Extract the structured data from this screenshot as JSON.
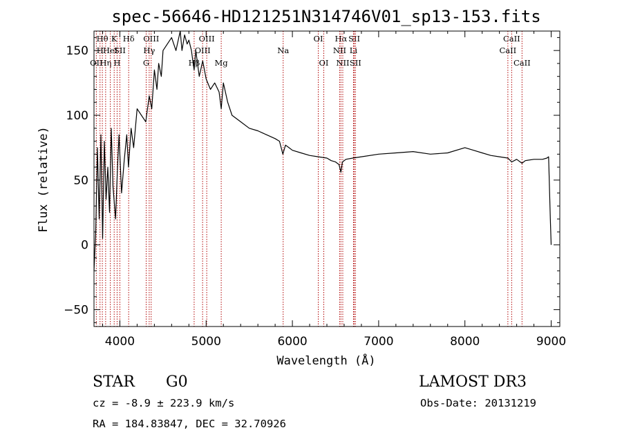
{
  "chart_data": {
    "type": "line",
    "title": "spec-56646-HD121251N314746V01_sp13-153.fits",
    "xlabel": "Wavelength (Å)",
    "ylabel": "Flux (relative)",
    "xlim": [
      3700,
      9100
    ],
    "ylim": [
      -63,
      165
    ],
    "x_ticks": [
      4000,
      5000,
      6000,
      7000,
      8000,
      9000
    ],
    "y_ticks": [
      -50,
      0,
      50,
      100,
      150
    ],
    "grid": false,
    "colors": {
      "spectrum": "#000000",
      "lines": "#b00000"
    },
    "series": [
      {
        "x": [
          3700,
          3720,
          3740,
          3760,
          3780,
          3800,
          3820,
          3840,
          3860,
          3880,
          3900,
          3920,
          3950,
          3970,
          3990,
          4020,
          4050,
          4080,
          4100,
          4130,
          4160,
          4200,
          4250,
          4300,
          4340,
          4370,
          4400,
          4430,
          4450,
          4480,
          4500,
          4550,
          4600,
          4650,
          4700,
          4720,
          4750,
          4780,
          4800,
          4830,
          4850,
          4861,
          4880,
          4920,
          4960,
          5000,
          5050,
          5100,
          5150,
          5175,
          5200,
          5250,
          5300,
          5400,
          5500,
          5600,
          5700,
          5800,
          5850,
          5890,
          5920,
          5960,
          6000,
          6100,
          6200,
          6300,
          6400,
          6450,
          6500,
          6540,
          6563,
          6580,
          6620,
          6700,
          6800,
          7000,
          7200,
          7400,
          7600,
          7800,
          8000,
          8100,
          8200,
          8300,
          8400,
          8498,
          8542,
          8600,
          8662,
          8700,
          8800,
          8900,
          8950,
          8970,
          8990,
          9000
        ],
        "values": [
          -20,
          10,
          75,
          20,
          85,
          5,
          80,
          35,
          60,
          25,
          90,
          45,
          20,
          55,
          85,
          40,
          65,
          85,
          60,
          90,
          75,
          105,
          100,
          95,
          115,
          105,
          135,
          120,
          140,
          130,
          150,
          155,
          160,
          150,
          165,
          150,
          162,
          155,
          158,
          150,
          140,
          135,
          150,
          130,
          142,
          128,
          120,
          125,
          118,
          105,
          125,
          110,
          100,
          95,
          90,
          88,
          85,
          82,
          80,
          70,
          77,
          75,
          73,
          71,
          69,
          68,
          67,
          65,
          64,
          62,
          56,
          64,
          66,
          67,
          68,
          70,
          71,
          72,
          70,
          71,
          75,
          73,
          71,
          69,
          68,
          67,
          64,
          66,
          63,
          65,
          66,
          66,
          67,
          68,
          20,
          0
        ]
      }
    ],
    "spectral_lines": [
      {
        "label": "Hθ",
        "x": 3797,
        "row": 0
      },
      {
        "label": "OII",
        "x": 3727,
        "row": 2
      },
      {
        "label": "H",
        "x": 3770,
        "row": 1
      },
      {
        "label": "Hη",
        "x": 3835,
        "row": 2
      },
      {
        "label": "HeI",
        "x": 3889,
        "row": 1
      },
      {
        "label": "K",
        "x": 3934,
        "row": 0
      },
      {
        "label": "SII",
        "x": 4000,
        "row": 1
      },
      {
        "label": "H",
        "x": 3968,
        "row": 2
      },
      {
        "label": "Hδ",
        "x": 4102,
        "row": 0
      },
      {
        "label": "OIII",
        "x": 4363,
        "row": 0
      },
      {
        "label": "Hγ",
        "x": 4340,
        "row": 1
      },
      {
        "label": "G",
        "x": 4305,
        "row": 2
      },
      {
        "label": "Hβ",
        "x": 4861,
        "row": 2
      },
      {
        "label": "OIII",
        "x": 5007,
        "row": 0
      },
      {
        "label": "OIII",
        "x": 4959,
        "row": 1
      },
      {
        "label": "Mg",
        "x": 5175,
        "row": 2
      },
      {
        "label": "Na",
        "x": 5893,
        "row": 1
      },
      {
        "label": "OI",
        "x": 6300,
        "row": 0
      },
      {
        "label": "OI",
        "x": 6364,
        "row": 2
      },
      {
        "label": "Hα",
        "x": 6563,
        "row": 0
      },
      {
        "label": "NII",
        "x": 6548,
        "row": 1
      },
      {
        "label": "NII",
        "x": 6584,
        "row": 2
      },
      {
        "label": "SII",
        "x": 6717,
        "row": 0
      },
      {
        "label": "Li",
        "x": 6708,
        "row": 1
      },
      {
        "label": "SII",
        "x": 6731,
        "row": 2
      },
      {
        "label": "CaII",
        "x": 8542,
        "row": 0
      },
      {
        "label": "CaII",
        "x": 8498,
        "row": 1
      },
      {
        "label": "CaII",
        "x": 8662,
        "row": 2
      }
    ]
  },
  "info": {
    "class": "STAR",
    "subclass": "G0",
    "survey": "LAMOST DR3",
    "cz": "cz = -8.9 ± 223.9 km/s",
    "obs_date": "Obs-Date: 20131219",
    "coords": "RA = 184.83847, DEC =  32.70926"
  }
}
